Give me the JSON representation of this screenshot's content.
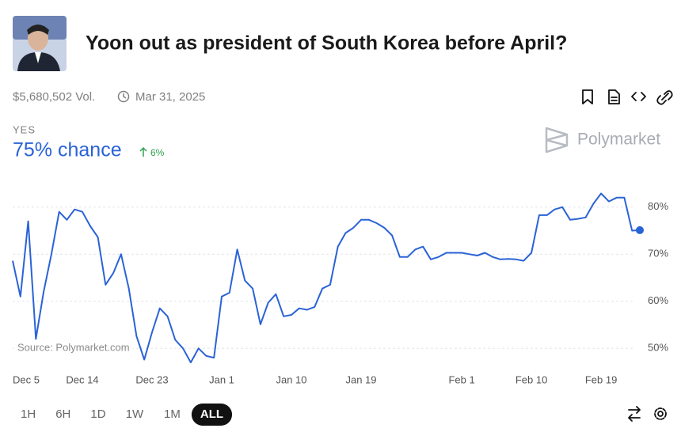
{
  "header": {
    "title": "Yoon out as president of South Korea before April?",
    "volume": "$5,680,502 Vol.",
    "end_date": "Mar 31, 2025"
  },
  "outcome": {
    "label": "YES",
    "chance": "75% chance",
    "change": "6%"
  },
  "brand": "Polymarket",
  "time_ranges": [
    "1H",
    "6H",
    "1D",
    "1W",
    "1M",
    "ALL"
  ],
  "chart_data": {
    "type": "line",
    "color": "#2a63d6",
    "grid": true,
    "source": "Source: Polymarket.com",
    "categories": [
      "Dec 5",
      null,
      null,
      null,
      null,
      null,
      null,
      null,
      null,
      "Dec 14",
      null,
      null,
      null,
      null,
      null,
      null,
      null,
      null,
      "Dec 23",
      null,
      null,
      null,
      null,
      null,
      null,
      null,
      null,
      "Jan 1",
      null,
      null,
      null,
      null,
      null,
      null,
      null,
      null,
      "Jan 10",
      null,
      null,
      null,
      null,
      null,
      null,
      null,
      null,
      "Jan 19",
      null,
      null,
      null,
      null,
      null,
      null,
      null,
      null,
      null,
      null,
      null,
      null,
      "Feb 1",
      null,
      null,
      null,
      null,
      null,
      null,
      null,
      null,
      "Feb 10",
      null,
      null,
      null,
      null,
      null,
      null,
      null,
      null,
      "Feb 19",
      null,
      null,
      null,
      null,
      null
    ],
    "values": [
      68.6,
      61,
      77,
      52,
      62,
      70,
      79,
      77.3,
      79.5,
      79,
      76,
      73.6,
      63.5,
      66,
      70,
      62.7,
      52.6,
      47.6,
      53.4,
      58.5,
      56.8,
      51.8,
      50,
      47,
      50,
      48.4,
      48,
      61,
      61.8,
      71,
      64.4,
      62.7,
      55.1,
      59.7,
      61.5,
      56.8,
      57.1,
      58.5,
      58.2,
      58.8,
      62.7,
      63.5,
      71.6,
      74.5,
      75.6,
      77.3,
      77.3,
      76.6,
      75.6,
      74,
      69.4,
      69.4,
      71,
      71.6,
      68.9,
      69.4,
      70.3,
      70.3,
      70.3,
      70,
      69.7,
      70.3,
      69.4,
      68.9,
      69,
      68.9,
      68.6,
      70.3,
      78.3,
      78.3,
      79.5,
      80,
      77.3,
      77.5,
      77.8,
      80.7,
      82.9,
      81.2,
      82,
      82,
      75,
      75.1
    ],
    "ylim": [
      45,
      85
    ],
    "yticks": [
      {
        "value": 50,
        "label": "50%"
      },
      {
        "value": 60,
        "label": "60%"
      },
      {
        "value": 70,
        "label": "70%"
      },
      {
        "value": 80,
        "label": "80%"
      }
    ]
  }
}
